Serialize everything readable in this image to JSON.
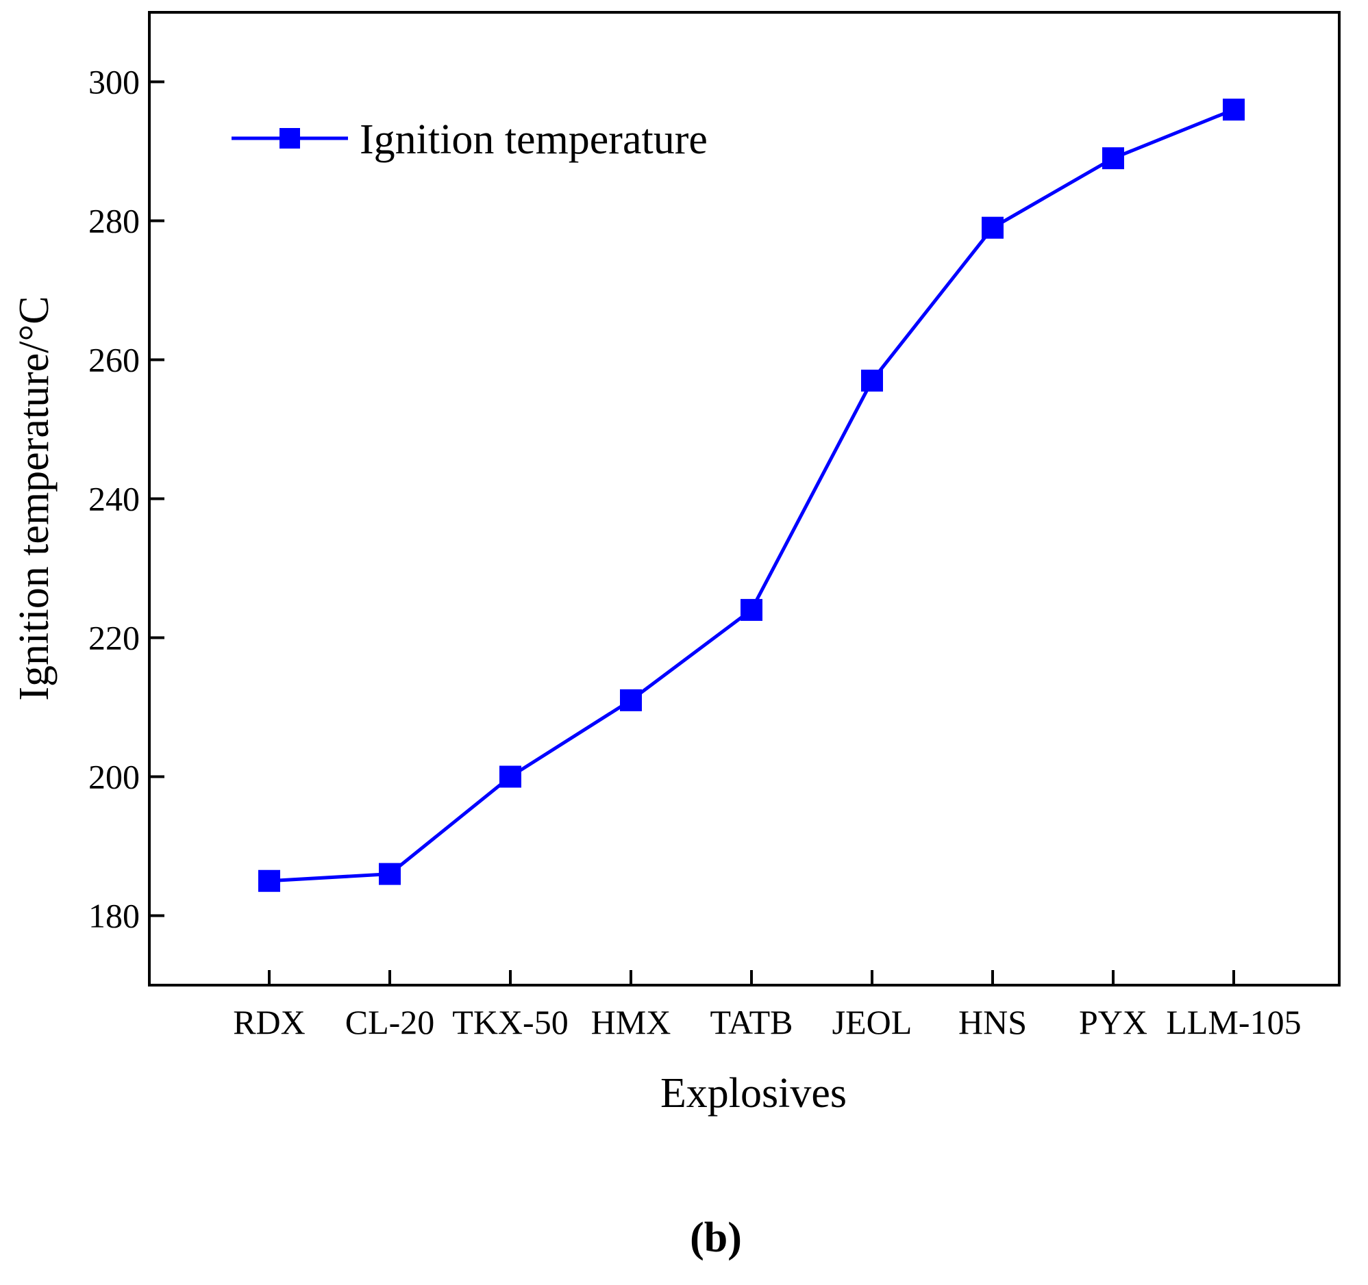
{
  "chart_data": {
    "type": "line",
    "categories": [
      "RDX",
      "CL-20",
      "TKX-50",
      "HMX",
      "TATB",
      "JEOL",
      "HNS",
      "PYX",
      "LLM-105"
    ],
    "series": [
      {
        "name": "Ignition temperature",
        "values": [
          185,
          186,
          200,
          211,
          224,
          257,
          279,
          289,
          296
        ],
        "color": "#0000ff",
        "marker": "square"
      }
    ],
    "title": "",
    "xlabel": "Explosives",
    "ylabel": "Ignition temperature/°C",
    "ylim": [
      170,
      310
    ],
    "yticks": [
      180,
      200,
      220,
      240,
      260,
      280,
      300
    ],
    "grid": false,
    "legend_position": "top-left"
  },
  "panel_label": "(b)",
  "colors": {
    "series": "#0000ff",
    "axis": "#000000",
    "background": "#ffffff"
  }
}
